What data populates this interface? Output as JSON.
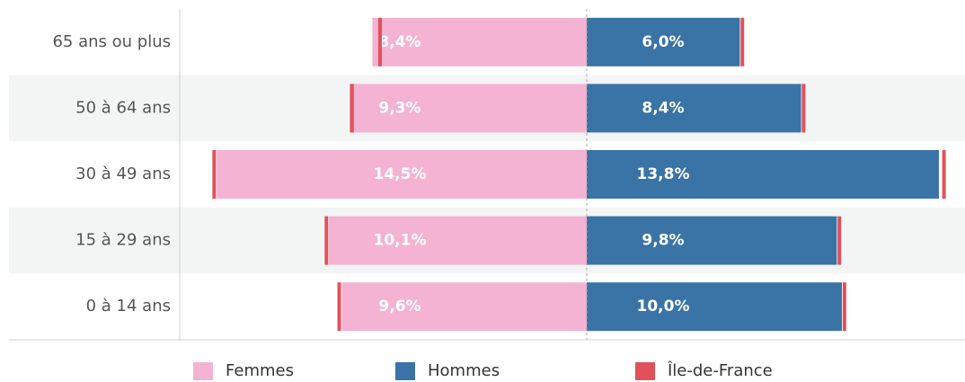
{
  "chart_data": {
    "type": "pyramid",
    "categories": [
      "65 ans ou plus",
      "50 à 64 ans",
      "30 à 49 ans",
      "15 à 29 ans",
      "0 à 14 ans"
    ],
    "series": [
      {
        "name": "Femmes",
        "color": "#f4b3d3",
        "side": "left",
        "values": [
          8.4,
          9.3,
          14.5,
          10.1,
          9.6
        ],
        "value_labels": [
          "8,4%",
          "9,3%",
          "14,5%",
          "10,1%",
          "9,6%"
        ]
      },
      {
        "name": "Hommes",
        "color": "#3a73a6",
        "side": "right",
        "values": [
          6.0,
          8.4,
          13.8,
          9.8,
          10.0
        ],
        "value_labels": [
          "6,0%",
          "8,4%",
          "13,8%",
          "9,8%",
          "10,0%"
        ]
      }
    ],
    "reference": {
      "name": "Île-de-France",
      "color": "#e1515a",
      "left": [
        8.1,
        9.2,
        14.6,
        10.2,
        9.7
      ],
      "right": [
        6.1,
        8.5,
        14.0,
        9.9,
        10.1
      ]
    }
  }
}
